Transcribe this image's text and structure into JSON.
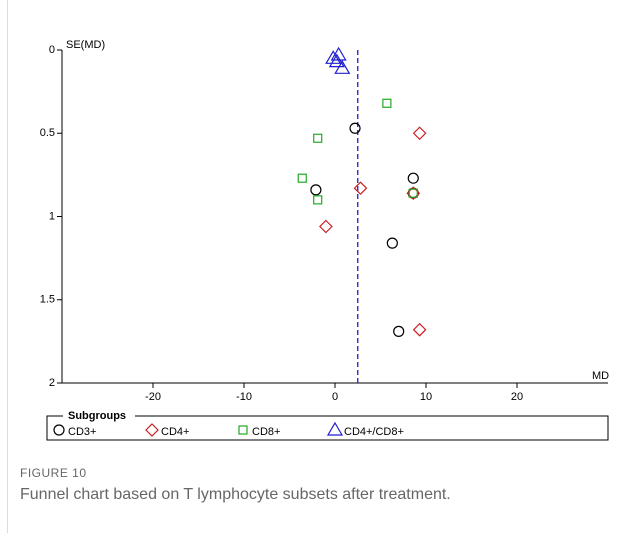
{
  "chart_data": {
    "type": "scatter",
    "figure_label": "FIGURE 10",
    "caption": "Funnel chart based on T lymphocyte subsets after treatment.",
    "ylabel": "SE(MD)",
    "xlabel": "MD",
    "legend_title": "Subgroups",
    "legend": "bottom",
    "xlim": [
      -30,
      30
    ],
    "xticks": [
      -20,
      -10,
      0,
      10,
      20
    ],
    "ylim": [
      0,
      2
    ],
    "yticks": [
      0,
      0.5,
      1,
      1.5,
      2
    ],
    "y_inverted": true,
    "reference_line": {
      "x": 2.5,
      "color": "#1f1fd0",
      "style": "dashed"
    },
    "series": [
      {
        "name": "CD3+",
        "color": "#000000",
        "marker": "circle",
        "x": [
          2.2,
          8.6,
          -2.1,
          8.6,
          6.3,
          7.0
        ],
        "values": [
          0.47,
          0.77,
          0.84,
          0.86,
          1.16,
          1.69
        ]
      },
      {
        "name": "CD4+",
        "color": "#cc1f1f",
        "marker": "diamond",
        "x": [
          9.3,
          2.8,
          8.6,
          -1.0,
          9.3
        ],
        "values": [
          0.5,
          0.83,
          0.86,
          1.06,
          1.68
        ]
      },
      {
        "name": "CD8+",
        "color": "#22aa22",
        "marker": "square",
        "x": [
          5.7,
          -1.9,
          -3.6,
          -1.9,
          8.6
        ],
        "values": [
          0.32,
          0.53,
          0.77,
          0.9,
          0.86
        ]
      },
      {
        "name": "CD4+/CD8+",
        "color": "#1f1fd0",
        "marker": "triangle",
        "x": [
          -0.2,
          0.4,
          0.2,
          0.8
        ],
        "values": [
          0.05,
          0.03,
          0.07,
          0.11
        ]
      }
    ]
  }
}
